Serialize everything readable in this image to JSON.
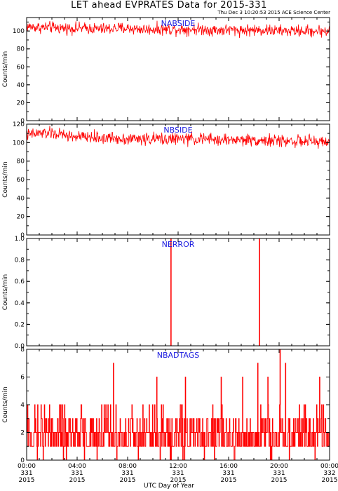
{
  "title": "LET ahead EVPRATES Data for 2015-331",
  "subtitle": "Thu Dec  3 10:20:53 2015 ACE Science Center",
  "xlabel": "UTC Day of Year",
  "colors": {
    "series": "#ff0000",
    "panel_label": "#1a1adf",
    "axis": "#000000"
  },
  "x_ticks": [
    {
      "hour": 0,
      "lines": [
        "00:00",
        "331",
        "2015"
      ]
    },
    {
      "hour": 4,
      "lines": [
        "04:00",
        "331",
        "2015"
      ]
    },
    {
      "hour": 8,
      "lines": [
        "08:00",
        "331",
        "2015"
      ]
    },
    {
      "hour": 12,
      "lines": [
        "12:00",
        "331",
        "2015"
      ]
    },
    {
      "hour": 16,
      "lines": [
        "16:00",
        "331",
        "2015"
      ]
    },
    {
      "hour": 20,
      "lines": [
        "20:00",
        "331",
        "2015"
      ]
    },
    {
      "hour": 24,
      "lines": [
        "00:00",
        "332",
        "2015"
      ]
    }
  ],
  "chart_data": [
    {
      "type": "line",
      "title": "NABSIDE",
      "ylabel": "Counts/min",
      "x_range_hours": [
        0,
        24
      ],
      "ylim": [
        0,
        115
      ],
      "yticks": [
        0,
        20,
        40,
        60,
        80,
        100
      ],
      "ytick_labels": [
        "0",
        "20",
        "40",
        "60",
        "80",
        "100"
      ],
      "series": [
        {
          "color": "#ff0000",
          "x_hours": [
            0,
            1,
            2,
            3,
            4,
            5,
            6,
            7,
            8,
            9,
            10,
            11,
            12,
            13,
            14,
            15,
            16,
            17,
            18,
            19,
            20,
            21,
            22,
            23,
            24
          ],
          "mean": [
            105,
            104,
            104,
            103,
            103,
            103,
            102,
            103,
            103,
            102,
            102,
            102,
            102,
            102,
            102,
            101,
            101,
            101,
            101,
            101,
            100,
            100,
            100,
            100,
            100
          ],
          "range": [
            [
              96,
              114
            ],
            [
              95,
              114
            ],
            [
              95,
              114
            ],
            [
              94,
              113
            ],
            [
              94,
              113
            ],
            [
              94,
              113
            ],
            [
              93,
              113
            ],
            [
              93,
              113
            ],
            [
              93,
              113
            ],
            [
              93,
              112
            ],
            [
              93,
              112
            ],
            [
              92,
              112
            ],
            [
              92,
              112
            ],
            [
              92,
              112
            ],
            [
              92,
              112
            ],
            [
              91,
              111
            ],
            [
              91,
              111
            ],
            [
              91,
              111
            ],
            [
              91,
              111
            ],
            [
              91,
              111
            ],
            [
              91,
              110
            ],
            [
              91,
              110
            ],
            [
              90,
              110
            ],
            [
              90,
              110
            ],
            [
              90,
              110
            ]
          ]
        }
      ]
    },
    {
      "type": "line",
      "title": "NBSIDE",
      "ylabel": "Counts/min",
      "x_range_hours": [
        0,
        24
      ],
      "ylim": [
        0,
        120
      ],
      "yticks": [
        0,
        20,
        40,
        60,
        80,
        100,
        120
      ],
      "ytick_labels": [
        "0",
        "20",
        "40",
        "60",
        "80",
        "100",
        "120"
      ],
      "series": [
        {
          "color": "#ff0000",
          "x_hours": [
            0,
            1,
            2,
            3,
            4,
            5,
            6,
            7,
            8,
            9,
            10,
            11,
            12,
            13,
            14,
            15,
            16,
            17,
            18,
            19,
            20,
            21,
            22,
            23,
            24
          ],
          "mean": [
            108,
            110,
            110,
            108,
            106,
            106,
            105,
            105,
            104,
            104,
            104,
            104,
            104,
            104,
            104,
            103,
            103,
            103,
            103,
            102,
            102,
            102,
            101,
            101,
            101
          ],
          "range": [
            [
              98,
              118
            ],
            [
              100,
              120
            ],
            [
              100,
              120
            ],
            [
              98,
              118
            ],
            [
              96,
              116
            ],
            [
              96,
              115
            ],
            [
              95,
              115
            ],
            [
              95,
              114
            ],
            [
              94,
              114
            ],
            [
              94,
              114
            ],
            [
              94,
              114
            ],
            [
              94,
              114
            ],
            [
              94,
              114
            ],
            [
              94,
              114
            ],
            [
              94,
              114
            ],
            [
              93,
              113
            ],
            [
              93,
              113
            ],
            [
              93,
              112
            ],
            [
              93,
              112
            ],
            [
              92,
              112
            ],
            [
              92,
              112
            ],
            [
              92,
              111
            ],
            [
              91,
              111
            ],
            [
              91,
              110
            ],
            [
              91,
              110
            ]
          ]
        }
      ]
    },
    {
      "type": "line",
      "title": "NERROR",
      "ylabel": "Counts/min",
      "x_range_hours": [
        0,
        24
      ],
      "ylim": [
        0,
        1
      ],
      "yticks": [
        0,
        0.2,
        0.4,
        0.6,
        0.8,
        1.0
      ],
      "ytick_labels": [
        "0.0",
        "0.2",
        "0.4",
        "0.6",
        "0.8",
        "1.0"
      ],
      "series": [
        {
          "color": "#ff0000",
          "baseline": 0,
          "spikes": [
            {
              "x_hour": 11.42,
              "y": 1
            },
            {
              "x_hour": 18.43,
              "y": 1
            }
          ]
        }
      ]
    },
    {
      "type": "line",
      "title": "NBADTAGS",
      "ylabel": "Counts/min",
      "x_range_hours": [
        0,
        24
      ],
      "ylim": [
        0,
        8
      ],
      "yticks": [
        0,
        2,
        4,
        6,
        8
      ],
      "ytick_labels": [
        "0",
        "2",
        "4",
        "6",
        "8"
      ],
      "series": [
        {
          "color": "#ff0000",
          "typical_values": [
            1,
            2,
            3
          ],
          "range": [
            0,
            4
          ],
          "peaks": [
            {
              "x_hour": 6.85,
              "y": 7
            },
            {
              "x_hour": 10.3,
              "y": 6
            },
            {
              "x_hour": 12.55,
              "y": 6
            },
            {
              "x_hour": 15.4,
              "y": 6
            },
            {
              "x_hour": 17.1,
              "y": 6
            },
            {
              "x_hour": 18.3,
              "y": 7
            },
            {
              "x_hour": 19.1,
              "y": 6
            },
            {
              "x_hour": 20.05,
              "y": 8
            },
            {
              "x_hour": 20.5,
              "y": 7
            },
            {
              "x_hour": 23.2,
              "y": 6
            }
          ]
        }
      ]
    }
  ]
}
